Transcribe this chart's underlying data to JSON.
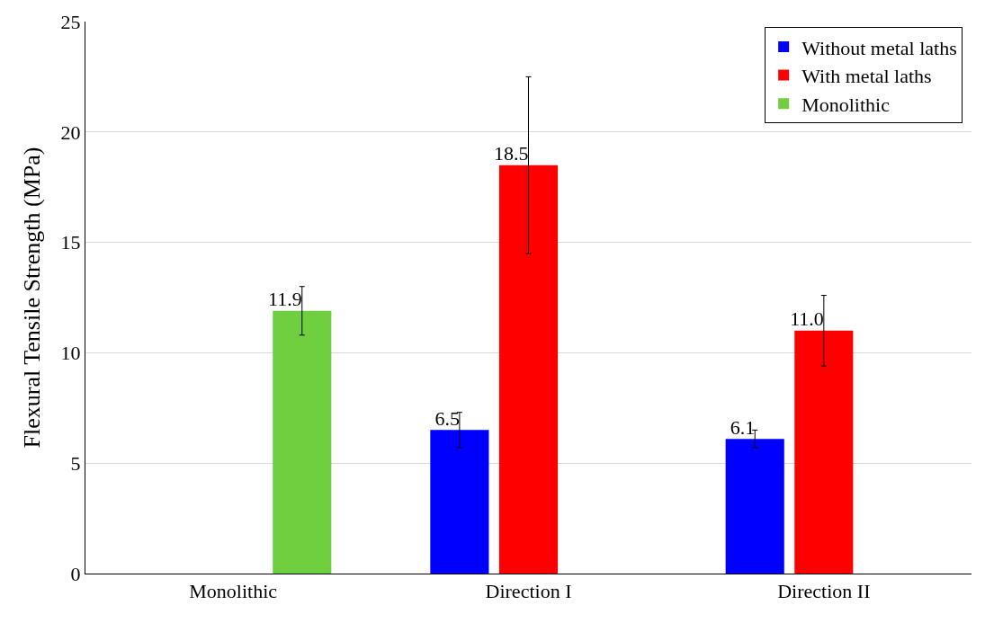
{
  "chart_data": {
    "type": "bar",
    "ylabel": "Flexural Tensile Strength (MPa)",
    "categories": [
      "Monolithic",
      "Direction I",
      "Direction II"
    ],
    "series": [
      {
        "name": "Without metal laths",
        "color": "#0000ff",
        "values": [
          null,
          6.5,
          6.1
        ],
        "errors": [
          null,
          0.8,
          0.4
        ],
        "value_labels": [
          null,
          "6.5",
          "6.1"
        ]
      },
      {
        "name": "With metal laths",
        "color": "#ff0000",
        "values": [
          null,
          18.5,
          11.0
        ],
        "errors": [
          null,
          4.0,
          1.6
        ],
        "value_labels": [
          null,
          "18.5",
          "11.0"
        ]
      },
      {
        "name": "Monolithic",
        "color": "#6fcf3f",
        "values": [
          11.9,
          null,
          null
        ],
        "errors": [
          1.1,
          null,
          null
        ],
        "value_labels": [
          "11.9",
          null,
          null
        ]
      }
    ],
    "ylim": [
      0,
      25
    ],
    "yticks": [
      0,
      5,
      10,
      15,
      20,
      25
    ],
    "grid": "y",
    "legend": "top right"
  }
}
